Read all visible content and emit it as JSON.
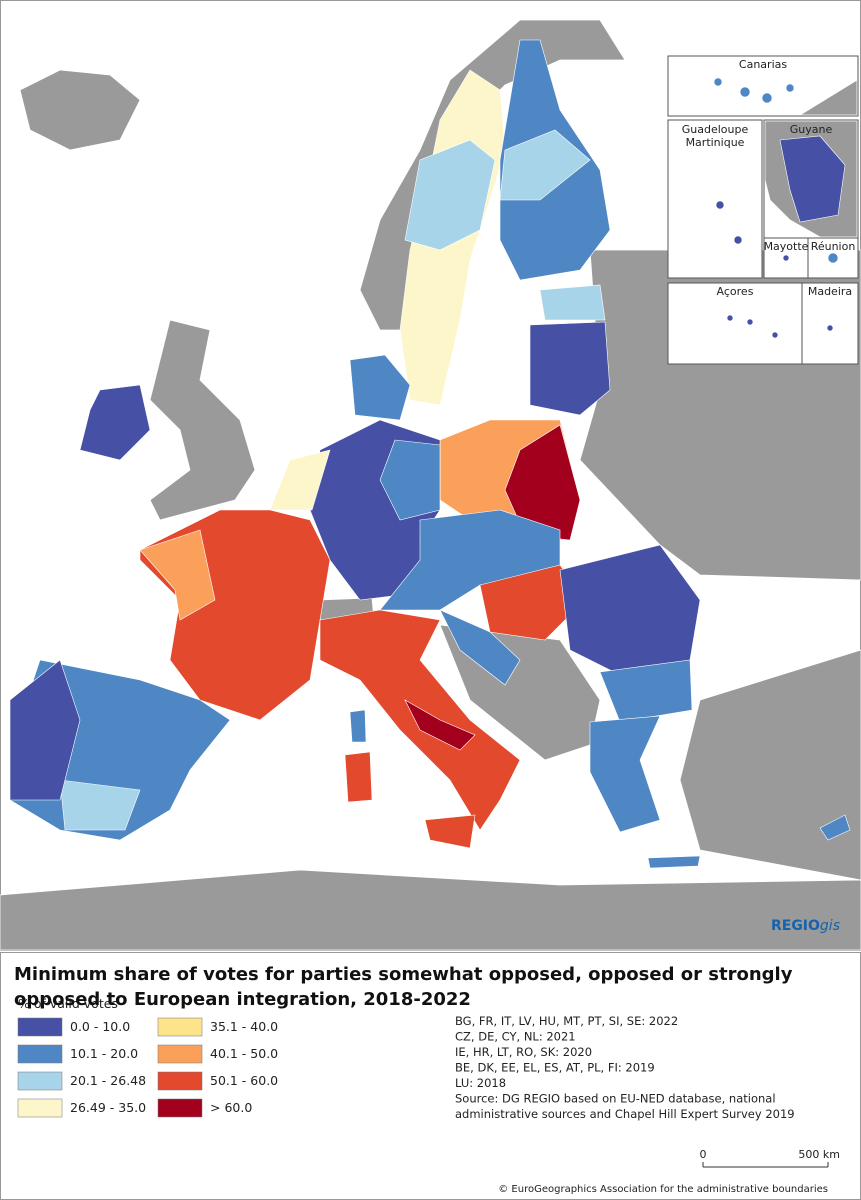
{
  "insets": {
    "canarias": "Canarias",
    "guadeloupe": "Guadeloupe",
    "martinique": "Martinique",
    "guyane": "Guyane",
    "mayotte": "Mayotte",
    "reunion": "Réunion",
    "acores": "Açores",
    "madeira": "Madeira"
  },
  "logo": {
    "main": "REGIO",
    "suffix": "gis"
  },
  "title": "Minimum share of votes for parties somewhat opposed, opposed or strongly opposed to European integration, 2018-2022",
  "legend": {
    "title": "% of valid votes",
    "items": [
      {
        "label": "0.0 - 10.0",
        "color": "#4650a5"
      },
      {
        "label": "10.1 - 20.0",
        "color": "#4f87c5"
      },
      {
        "label": "20.1 - 26.48",
        "color": "#a7d4e9"
      },
      {
        "label": "26.49 - 35.0",
        "color": "#fdf6ca"
      },
      {
        "label": "35.1 - 40.0",
        "color": "#fde38a"
      },
      {
        "label": "40.1 - 50.0",
        "color": "#fba05b"
      },
      {
        "label": "50.1 - 60.0",
        "color": "#e2492d"
      },
      {
        "label": "> 60.0",
        "color": "#a3001e"
      }
    ]
  },
  "notes": [
    "BG, FR, IT, LV, HU, MT, PT, SI, SE: 2022",
    "CZ, DE, CY, NL: 2021",
    "IE, HR, LT, RO, SK: 2020",
    "BE, DK, EE, EL, ES, AT, PL, FI: 2019",
    "LU: 2018",
    "Source: DG REGIO based on EU-NED database, national",
    "administrative sources and Chapel Hill Expert Survey 2019"
  ],
  "scale": {
    "start": "0",
    "end": "500 km"
  },
  "copyright": "© EuroGeographics Association for the administrative boundaries"
}
